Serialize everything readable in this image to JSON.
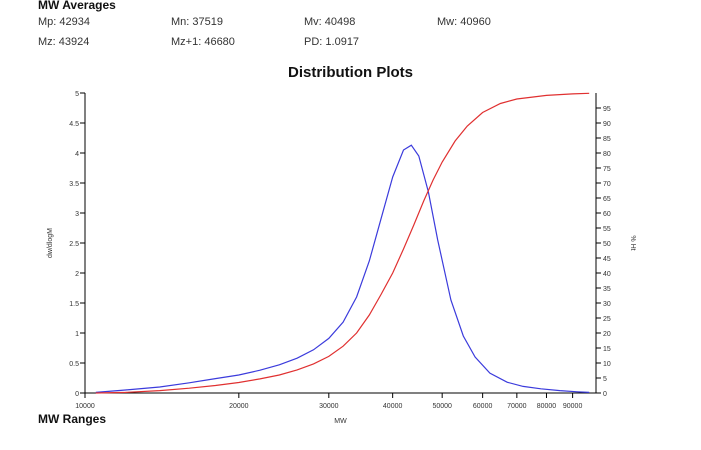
{
  "averages": {
    "title": "MW Averages",
    "items": [
      {
        "label": "Mp:",
        "value": "42934"
      },
      {
        "label": "Mn:",
        "value": "37519"
      },
      {
        "label": "Mv:",
        "value": "40498"
      },
      {
        "label": "Mw:",
        "value": "40960"
      },
      {
        "label": "Mz:",
        "value": "43924"
      },
      {
        "label": "Mz+1:",
        "value": "46680"
      },
      {
        "label": "PD:",
        "value": "1.0917"
      }
    ]
  },
  "ranges": {
    "title": "MW Ranges"
  },
  "chart_data": {
    "type": "line",
    "title": "Distribution Plots",
    "xlabel": "MW",
    "ylabel": "dw/dlogM",
    "y2label": "% Ht",
    "x_scale": "log",
    "xlim": [
      10000,
      100000
    ],
    "ylim": [
      0,
      5
    ],
    "y2lim": [
      0,
      100
    ],
    "x_ticks": [
      "10000",
      "20000",
      "30000",
      "40000",
      "50000",
      "60000",
      "70000",
      "80000",
      "90000"
    ],
    "y_ticks": [
      "0",
      "0.5",
      "1",
      "1.5",
      "2",
      "2.5",
      "3",
      "3.5",
      "4",
      "4.5",
      "5"
    ],
    "y2_ticks": [
      "0",
      "5",
      "10",
      "15",
      "20",
      "25",
      "30",
      "35",
      "40",
      "45",
      "50",
      "55",
      "60",
      "65",
      "70",
      "75",
      "80",
      "85",
      "90",
      "95"
    ],
    "grid": false,
    "series": [
      {
        "axis": "left",
        "color": "#3b3bdc",
        "x": [
          10500,
          12000,
          14000,
          16000,
          18000,
          20000,
          22000,
          24000,
          26000,
          28000,
          30000,
          32000,
          34000,
          36000,
          38000,
          40000,
          42000,
          43500,
          45000,
          47000,
          49000,
          52000,
          55000,
          58000,
          62000,
          67000,
          72000,
          78000,
          85000,
          92000,
          97000
        ],
        "y": [
          0.01,
          0.05,
          0.1,
          0.17,
          0.24,
          0.3,
          0.38,
          0.47,
          0.58,
          0.72,
          0.91,
          1.18,
          1.6,
          2.2,
          2.92,
          3.6,
          4.05,
          4.13,
          3.95,
          3.35,
          2.55,
          1.55,
          0.95,
          0.6,
          0.33,
          0.18,
          0.11,
          0.07,
          0.04,
          0.02,
          0.01
        ]
      },
      {
        "axis": "right",
        "color": "#e03030",
        "x": [
          10500,
          12000,
          14000,
          16000,
          18000,
          20000,
          22000,
          24000,
          26000,
          28000,
          30000,
          32000,
          34000,
          36000,
          38000,
          40000,
          42000,
          44000,
          46000,
          48000,
          50000,
          53000,
          56000,
          60000,
          65000,
          70000,
          80000,
          90000,
          97000
        ],
        "y": [
          0,
          0.2,
          0.8,
          1.6,
          2.5,
          3.5,
          4.7,
          6,
          7.7,
          9.7,
          12.2,
          15.6,
          20,
          26,
          33,
          40,
          48,
          56,
          64,
          71,
          77,
          84,
          89,
          93.5,
          96.5,
          98,
          99.2,
          99.7,
          99.9
        ]
      }
    ]
  }
}
